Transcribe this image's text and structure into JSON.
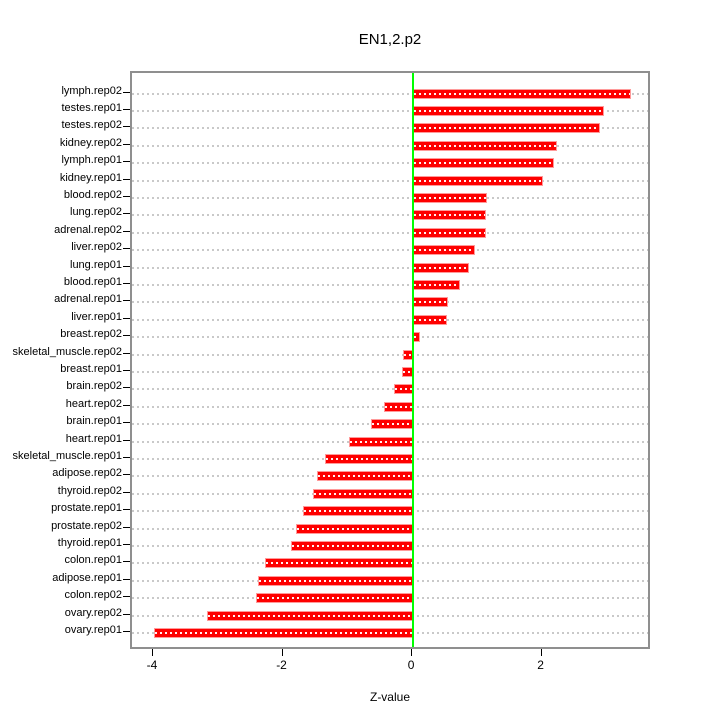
{
  "title": "EN1,2.p2",
  "chart_data": {
    "type": "bar",
    "orientation": "horizontal",
    "title": "EN1,2.p2",
    "xlabel": "Z-value",
    "ylabel": "",
    "xlim": [
      -4.34,
      3.69
    ],
    "xticks": [
      -4,
      -2,
      0,
      2
    ],
    "grid": "dotted-horizontal-per-category",
    "legend": "none",
    "colors": {
      "bar_fill": "#fe0000",
      "bar_border": "#ff9a9a",
      "zero_line": "#00ff00",
      "gridline": "#c9c9c9",
      "frame": "#8f8f8f",
      "text": "#000000",
      "background": "#ffffff"
    },
    "categories": [
      "lymph.rep02",
      "testes.rep01",
      "testes.rep02",
      "kidney.rep02",
      "lymph.rep01",
      "kidney.rep01",
      "blood.rep02",
      "lung.rep02",
      "adrenal.rep02",
      "liver.rep02",
      "lung.rep01",
      "blood.rep01",
      "adrenal.rep01",
      "liver.rep01",
      "breast.rep02",
      "skeletal_muscle.rep02",
      "breast.rep01",
      "brain.rep02",
      "heart.rep02",
      "brain.rep01",
      "heart.rep01",
      "skeletal_muscle.rep01",
      "adipose.rep02",
      "thyroid.rep02",
      "prostate.rep01",
      "prostate.rep02",
      "thyroid.rep01",
      "colon.rep01",
      "adipose.rep01",
      "colon.rep02",
      "ovary.rep02",
      "ovary.rep01"
    ],
    "values": [
      3.37,
      2.95,
      2.89,
      2.23,
      2.18,
      2.01,
      1.14,
      1.13,
      1.12,
      0.95,
      0.87,
      0.73,
      0.54,
      0.52,
      0.11,
      -0.15,
      -0.17,
      -0.3,
      -0.45,
      -0.65,
      -0.99,
      -1.36,
      -1.48,
      -1.54,
      -1.7,
      -1.81,
      -1.88,
      -2.28,
      -2.4,
      -2.42,
      -3.18,
      -4.0
    ]
  }
}
